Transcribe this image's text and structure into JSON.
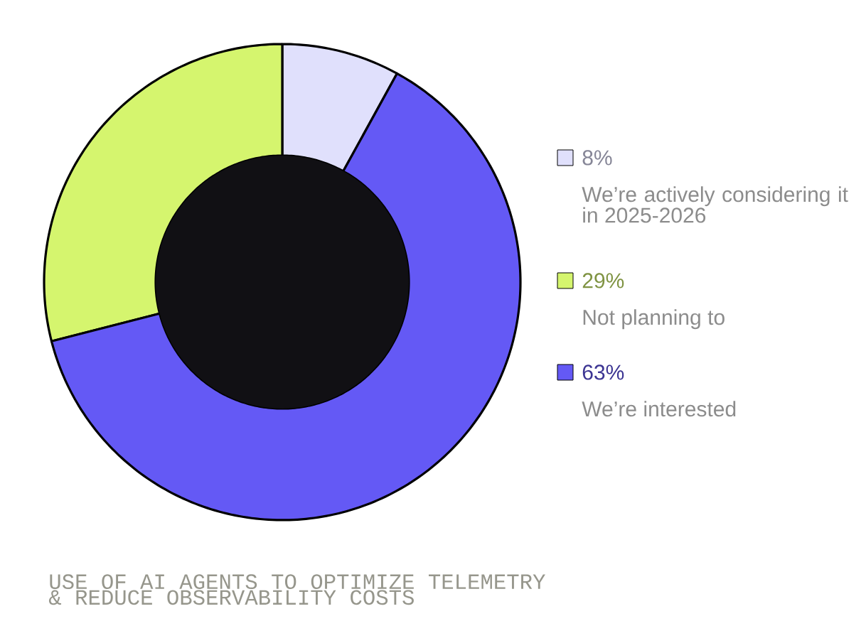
{
  "chart_data": {
    "type": "donut",
    "title": "USE OF AI AGENTS TO OPTIMIZE TELEMETRY & REDUCE OBSERVABILITY COSTS",
    "categories": [
      "We’re actively considering it in 2025-2026",
      "Not planning to",
      "We’re interested"
    ],
    "values": [
      8,
      29,
      63
    ],
    "colors": [
      "#e0e0fc",
      "#d5f56e",
      "#6459f5"
    ],
    "value_labels": [
      "8%",
      "29%",
      "63%"
    ],
    "legend": "right"
  }
}
